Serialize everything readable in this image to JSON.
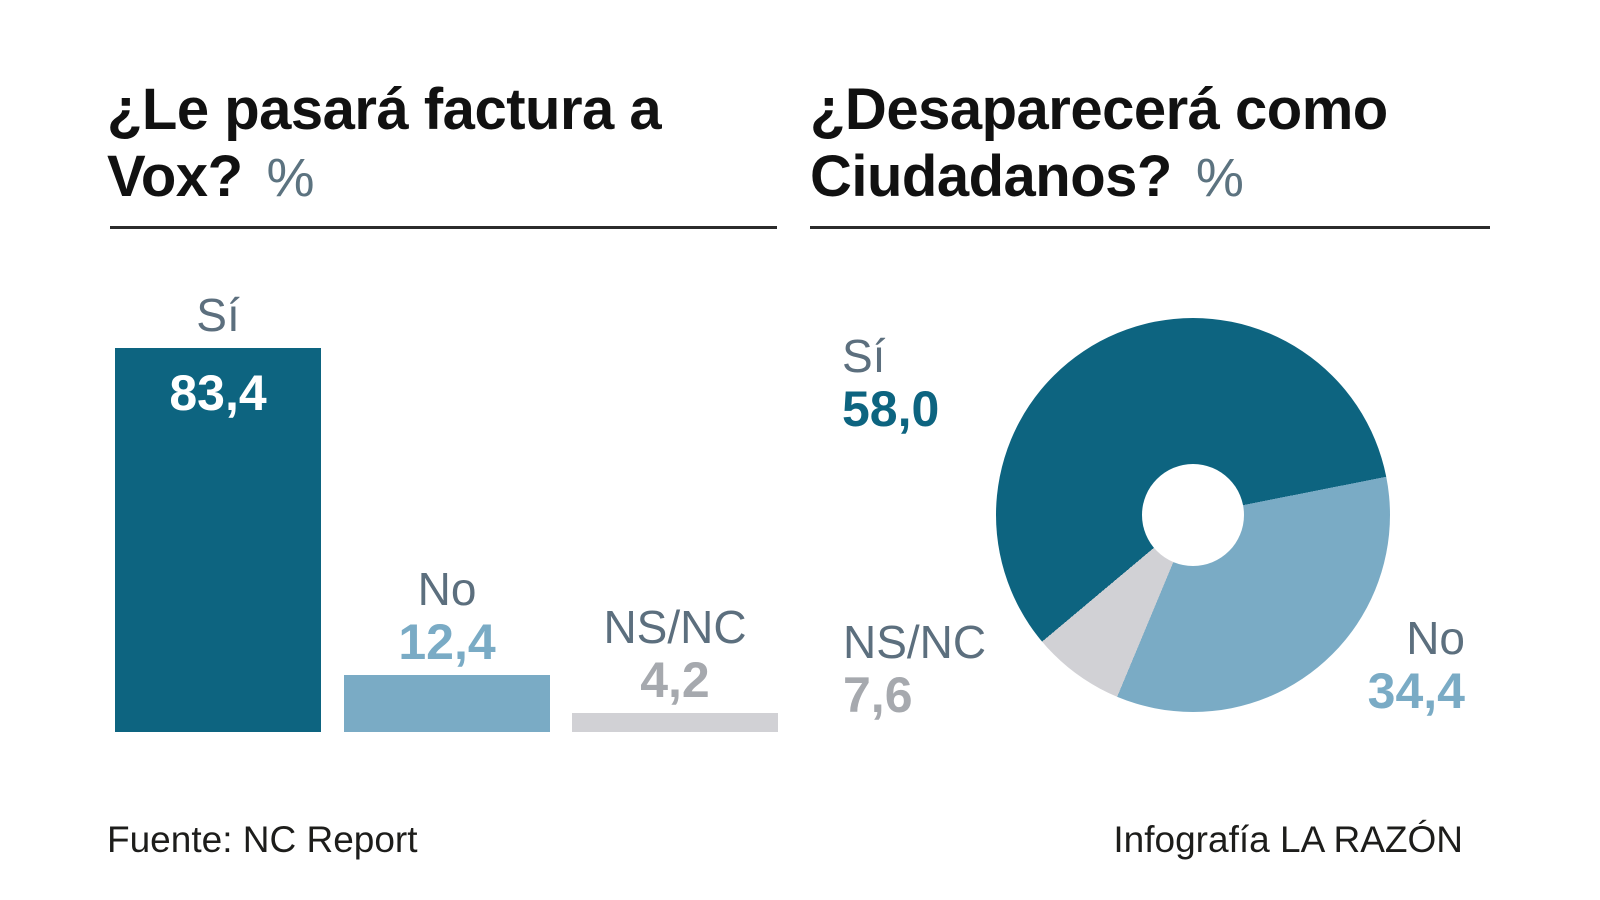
{
  "footer": {
    "source": "Fuente: NC Report",
    "credit": "Infografía LA RAZÓN"
  },
  "colors": {
    "accent_teal": "#0d6480",
    "light_blue": "#7aabc5",
    "light_gray": "#d1d1d5",
    "label_gray_blue": "#5c6f7e",
    "value_gray": "#a6a9ae",
    "unit_percent_gray": "#5c7380",
    "title_text": "#111111",
    "rule": "#2b2b2b",
    "footer_text": "#1d1d1b"
  },
  "chart_data": [
    {
      "type": "bar",
      "title_lines": [
        "¿Le pasará factura a",
        "Vox?"
      ],
      "title": "¿Le pasará factura a Vox?",
      "unit_label": "%",
      "categories": [
        "Sí",
        "No",
        "NS/NC"
      ],
      "values": [
        83.4,
        12.4,
        4.2
      ],
      "value_labels": [
        "83,4",
        "12,4",
        "4,2"
      ],
      "bar_colors": [
        "#0d6480",
        "#7aabc5",
        "#d1d1d5"
      ],
      "value_label_colors": [
        "#ffffff",
        "#7aabc5",
        "#a6a9ae"
      ],
      "value_position": [
        "inside-top",
        "above",
        "above"
      ],
      "category_label_color": "#5c6f7e",
      "ylim": [
        0,
        100
      ],
      "grid": false,
      "axis_labels": "none"
    },
    {
      "type": "donut",
      "title_lines": [
        "¿Desaparecerá como",
        "Ciudadanos?"
      ],
      "title": "¿Desaparecerá como Ciudadanos?",
      "unit_label": "%",
      "slices": [
        {
          "label": "Sí",
          "value": 58.0,
          "value_label": "58,0",
          "color": "#0d6480",
          "value_text_color": "#0d6480"
        },
        {
          "label": "No",
          "value": 34.4,
          "value_label": "34,4",
          "color": "#7aabc5",
          "value_text_color": "#7aabc5"
        },
        {
          "label": "NS/NC",
          "value": 7.6,
          "value_label": "7,6",
          "color": "#d1d1d5",
          "value_text_color": "#a6a9ae"
        }
      ],
      "label_color": "#5c6f7e",
      "start_angle_deg": 230,
      "legend": "labels-around-donut"
    }
  ]
}
